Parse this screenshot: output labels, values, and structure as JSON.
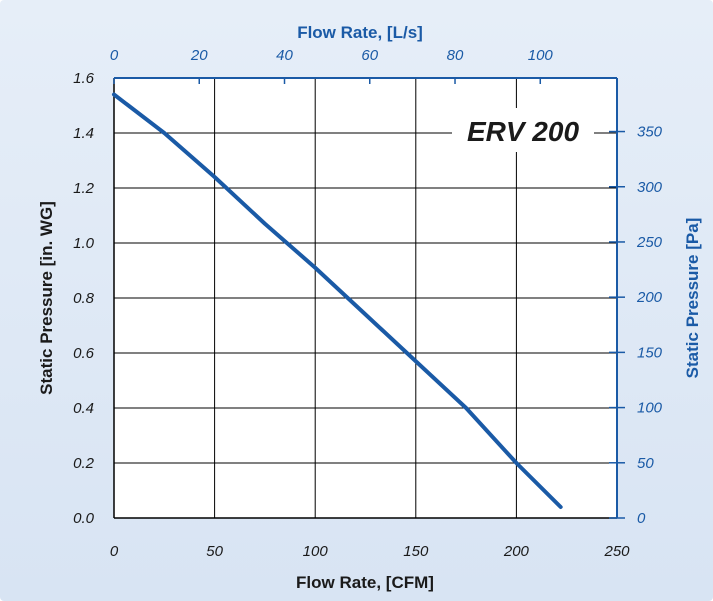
{
  "chart_data": {
    "type": "line",
    "title": "ERV 200",
    "xlabel": "Flow Rate, [CFM]",
    "x2label": "Flow Rate, [L/s]",
    "ylabel": "Static Pressure [in. WG]",
    "y2label": "Static Pressure [Pa]",
    "xlim": [
      0,
      250
    ],
    "ylim": [
      0,
      1.6
    ],
    "x2lim": [
      0,
      118
    ],
    "y2lim": [
      0,
      398.5
    ],
    "x_ticks": [
      0,
      50,
      100,
      150,
      200,
      250
    ],
    "x_tick_labels": [
      "0",
      "50",
      "100",
      "150",
      "200",
      "250"
    ],
    "y_ticks": [
      0,
      0.2,
      0.4,
      0.6,
      0.8,
      1.0,
      1.2,
      1.4,
      1.6
    ],
    "y_tick_labels": [
      "0.0",
      "0.2",
      "0.4",
      "0.6",
      "0.8",
      "1.0",
      "1.2",
      "1.4",
      "1.6"
    ],
    "x2_ticks": [
      0,
      20,
      40,
      60,
      80,
      100
    ],
    "x2_tick_labels": [
      "0",
      "20",
      "40",
      "60",
      "80",
      "100"
    ],
    "y2_ticks": [
      0,
      50,
      100,
      150,
      200,
      250,
      300,
      350
    ],
    "y2_tick_labels": [
      "0",
      "50",
      "100",
      "150",
      "200",
      "250",
      "300",
      "350"
    ],
    "grid": true,
    "series": [
      {
        "color": "#1a5aa6",
        "x": [
          0,
          25,
          50,
          75,
          100,
          125,
          150,
          175,
          200,
          222
        ],
        "y": [
          1.54,
          1.4,
          1.24,
          1.07,
          0.91,
          0.74,
          0.57,
          0.4,
          0.2,
          0.04
        ]
      }
    ]
  }
}
